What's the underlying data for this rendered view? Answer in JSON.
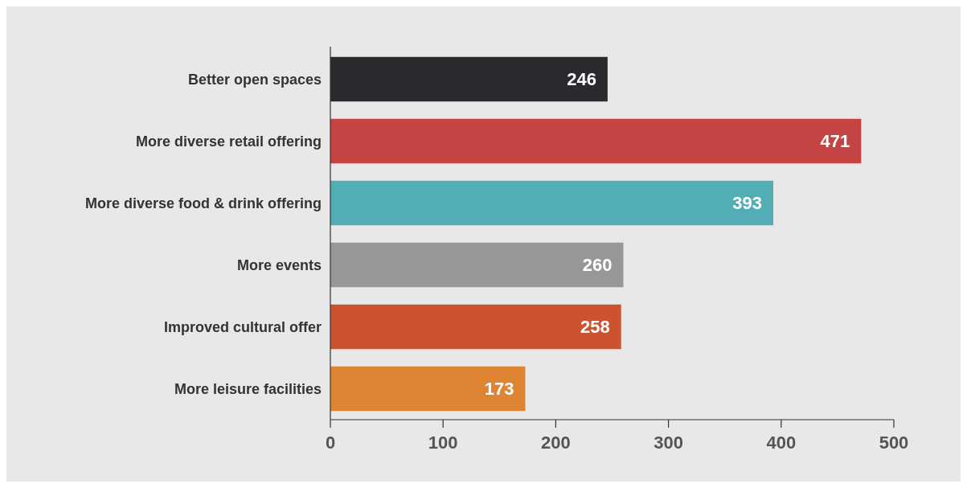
{
  "chart_data": {
    "type": "bar",
    "orientation": "horizontal",
    "categories": [
      "Better open spaces",
      "More diverse retail offering",
      "More diverse food & drink offering",
      "More events",
      "Improved cultural offer",
      "More leisure facilities"
    ],
    "values": [
      246,
      471,
      393,
      260,
      258,
      173
    ],
    "colors": [
      "#2a2a2e",
      "#c44444",
      "#52adb5",
      "#979797",
      "#cc532f",
      "#de8432"
    ],
    "xlim": [
      0,
      500
    ],
    "xticks": [
      0,
      100,
      200,
      300,
      400,
      500
    ],
    "data_labels": true
  }
}
